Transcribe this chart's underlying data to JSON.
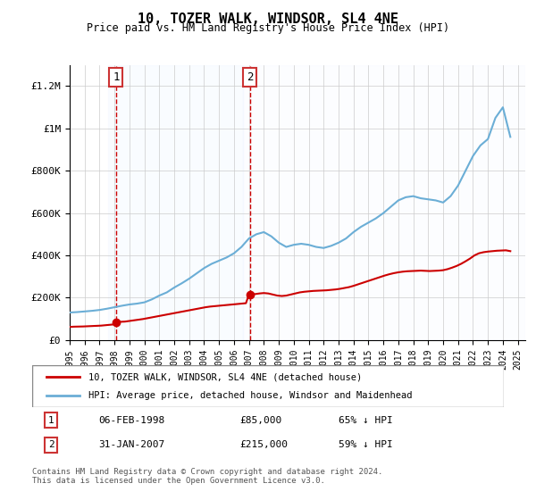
{
  "title": "10, TOZER WALK, WINDSOR, SL4 4NE",
  "subtitle": "Price paid vs. HM Land Registry's House Price Index (HPI)",
  "footer": "Contains HM Land Registry data © Crown copyright and database right 2024.\nThis data is licensed under the Open Government Licence v3.0.",
  "legend_line1": "10, TOZER WALK, WINDSOR, SL4 4NE (detached house)",
  "legend_line2": "HPI: Average price, detached house, Windsor and Maidenhead",
  "sale1_label": "1",
  "sale1_date": "06-FEB-1998",
  "sale1_price": "£85,000",
  "sale1_hpi": "65% ↓ HPI",
  "sale1_year": 1998.1,
  "sale1_value": 85000,
  "sale2_label": "2",
  "sale2_date": "31-JAN-2007",
  "sale2_price": "£215,000",
  "sale2_hpi": "59% ↓ HPI",
  "sale2_year": 2007.08,
  "sale2_value": 215000,
  "hpi_color": "#6baed6",
  "price_color": "#cc0000",
  "marker_color": "#cc0000",
  "background_shaded": "#ddeeff",
  "grid_color": "#cccccc",
  "ylim": [
    0,
    1300000
  ],
  "yticks": [
    0,
    200000,
    400000,
    600000,
    800000,
    1000000,
    1200000
  ],
  "ytick_labels": [
    "£0",
    "£200K",
    "£400K",
    "£600K",
    "£800K",
    "£1M",
    "£1.2M"
  ],
  "hpi_years": [
    1995,
    1995.5,
    1996,
    1996.5,
    1997,
    1997.5,
    1998,
    1998.5,
    1999,
    1999.5,
    2000,
    2000.5,
    2001,
    2001.5,
    2002,
    2002.5,
    2003,
    2003.5,
    2004,
    2004.5,
    2005,
    2005.5,
    2006,
    2006.5,
    2007,
    2007.5,
    2008,
    2008.5,
    2009,
    2009.5,
    2010,
    2010.5,
    2011,
    2011.5,
    2012,
    2012.5,
    2013,
    2013.5,
    2014,
    2014.5,
    2015,
    2015.5,
    2016,
    2016.5,
    2017,
    2017.5,
    2018,
    2018.5,
    2019,
    2019.5,
    2020,
    2020.5,
    2021,
    2021.5,
    2022,
    2022.5,
    2023,
    2023.5,
    2024,
    2024.5
  ],
  "hpi_values": [
    130000,
    132000,
    135000,
    138000,
    142000,
    148000,
    155000,
    162000,
    168000,
    172000,
    178000,
    192000,
    210000,
    225000,
    248000,
    268000,
    290000,
    315000,
    340000,
    360000,
    375000,
    390000,
    410000,
    440000,
    480000,
    500000,
    510000,
    490000,
    460000,
    440000,
    450000,
    455000,
    450000,
    440000,
    435000,
    445000,
    460000,
    480000,
    510000,
    535000,
    555000,
    575000,
    600000,
    630000,
    660000,
    675000,
    680000,
    670000,
    665000,
    660000,
    650000,
    680000,
    730000,
    800000,
    870000,
    920000,
    950000,
    1050000,
    1100000,
    960000
  ],
  "price_years": [
    1995,
    1995.3,
    1995.6,
    1995.9,
    1996.2,
    1996.5,
    1996.8,
    1997.1,
    1997.4,
    1997.7,
    1998.0,
    1998.1,
    1998.4,
    1998.7,
    1999.0,
    1999.3,
    1999.6,
    1999.9,
    2000.2,
    2000.5,
    2000.8,
    2001.1,
    2001.4,
    2001.7,
    2002.0,
    2002.3,
    2002.6,
    2002.9,
    2003.2,
    2003.5,
    2003.8,
    2004.1,
    2004.4,
    2004.7,
    2005.0,
    2005.3,
    2005.6,
    2005.9,
    2006.2,
    2006.5,
    2006.8,
    2007.0,
    2007.08,
    2007.4,
    2007.7,
    2008.0,
    2008.3,
    2008.6,
    2008.9,
    2009.2,
    2009.5,
    2009.8,
    2010.1,
    2010.4,
    2010.7,
    2011.0,
    2011.3,
    2011.6,
    2011.9,
    2012.2,
    2012.5,
    2012.8,
    2013.1,
    2013.4,
    2013.7,
    2014.0,
    2014.3,
    2014.6,
    2014.9,
    2015.2,
    2015.5,
    2015.8,
    2016.1,
    2016.4,
    2016.7,
    2017.0,
    2017.3,
    2017.6,
    2017.9,
    2018.2,
    2018.5,
    2018.8,
    2019.1,
    2019.4,
    2019.7,
    2020.0,
    2020.3,
    2020.6,
    2020.9,
    2021.2,
    2021.5,
    2021.8,
    2022.1,
    2022.4,
    2022.7,
    2023.0,
    2023.3,
    2023.6,
    2023.9,
    2024.2,
    2024.5
  ],
  "price_values": [
    62000,
    63000,
    63500,
    64000,
    65000,
    66000,
    67000,
    68000,
    70000,
    72000,
    74000,
    85000,
    86000,
    87000,
    90000,
    93000,
    96000,
    99000,
    103000,
    107000,
    111000,
    115000,
    119000,
    123000,
    127000,
    131000,
    135000,
    139000,
    143000,
    147000,
    151000,
    155000,
    158000,
    160000,
    162000,
    164000,
    166000,
    168000,
    170000,
    172000,
    174000,
    215000,
    215000,
    217000,
    220000,
    222000,
    220000,
    215000,
    210000,
    208000,
    210000,
    215000,
    220000,
    225000,
    228000,
    230000,
    232000,
    233000,
    234000,
    235000,
    237000,
    239000,
    242000,
    246000,
    250000,
    256000,
    263000,
    270000,
    277000,
    284000,
    291000,
    298000,
    305000,
    311000,
    316000,
    320000,
    323000,
    325000,
    326000,
    327000,
    328000,
    327000,
    326000,
    327000,
    328000,
    330000,
    335000,
    342000,
    350000,
    360000,
    372000,
    385000,
    400000,
    410000,
    415000,
    418000,
    420000,
    422000,
    423000,
    424000,
    420000
  ],
  "xtick_years": [
    1995,
    1996,
    1997,
    1998,
    1999,
    2000,
    2001,
    2002,
    2003,
    2004,
    2005,
    2006,
    2007,
    2008,
    2009,
    2010,
    2011,
    2012,
    2013,
    2014,
    2015,
    2016,
    2017,
    2018,
    2019,
    2020,
    2021,
    2022,
    2023,
    2024,
    2025
  ]
}
